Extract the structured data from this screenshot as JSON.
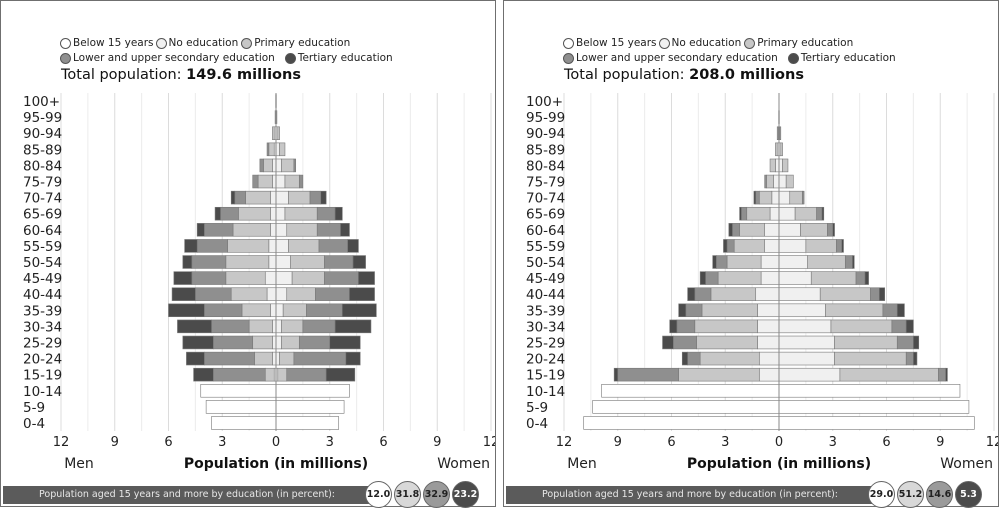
{
  "legend": {
    "items": [
      {
        "label": "Below 15 years",
        "color": "#ffffff"
      },
      {
        "label": "No education",
        "color": "#f0f0f0"
      },
      {
        "label": "Primary education",
        "color": "#c7c7c7"
      },
      {
        "label": "Lower and upper secondary education",
        "color": "#8f8f8f"
      },
      {
        "label": "Tertiary education",
        "color": "#4b4b4b"
      }
    ]
  },
  "footer": {
    "label": "Population aged 15 years and more by education (in percent):"
  },
  "panels": [
    {
      "total_label": "Total population:",
      "total_value": "149.6 millions",
      "bubbles": [
        {
          "value": "12.0",
          "color": "#ffffff",
          "text": "#222222"
        },
        {
          "value": "31.8",
          "color": "#d8d8d8",
          "text": "#222222"
        },
        {
          "value": "32.9",
          "color": "#9a9a9a",
          "text": "#222222"
        },
        {
          "value": "23.2",
          "color": "#4b4b4b",
          "text": "#ffffff"
        }
      ]
    },
    {
      "total_label": "Total population:",
      "total_value": "208.0 millions",
      "bubbles": [
        {
          "value": "29.0",
          "color": "#ffffff",
          "text": "#222222"
        },
        {
          "value": "51.2",
          "color": "#d8d8d8",
          "text": "#222222"
        },
        {
          "value": "14.6",
          "color": "#9a9a9a",
          "text": "#222222"
        },
        {
          "value": "5.3",
          "color": "#4b4b4b",
          "text": "#ffffff"
        }
      ]
    }
  ],
  "chart_data": [
    {
      "type": "bar",
      "orientation": "horizontal",
      "subtype": "population-pyramid",
      "title": "Total population: 149.6 millions",
      "xlabel": "Population (in millions)",
      "left_label": "Men",
      "right_label": "Women",
      "xlim": [
        -12,
        12
      ],
      "x_ticks": [
        "12",
        "9",
        "6",
        "3",
        "0",
        "3",
        "6",
        "9",
        "12"
      ],
      "categories": [
        "0-4",
        "5-9",
        "10-14",
        "15-19",
        "20-24",
        "25-29",
        "30-34",
        "35-39",
        "40-44",
        "45-49",
        "50-54",
        "55-59",
        "60-64",
        "65-69",
        "70-74",
        "75-79",
        "80-84",
        "85-89",
        "90-94",
        "95-99",
        "100+"
      ],
      "series_order": [
        "Below 15 years",
        "No education",
        "Primary education",
        "Lower and upper secondary education",
        "Tertiary education"
      ],
      "men": [
        [
          3.6,
          0,
          0,
          0,
          0
        ],
        [
          3.9,
          0,
          0,
          0,
          0
        ],
        [
          4.2,
          0,
          0,
          0,
          0
        ],
        [
          0,
          0.1,
          0.5,
          2.9,
          1.1
        ],
        [
          0,
          0.2,
          1.0,
          2.8,
          1.0
        ],
        [
          0,
          0.2,
          1.1,
          2.2,
          1.7
        ],
        [
          0,
          0.2,
          1.3,
          2.1,
          1.9
        ],
        [
          0,
          0.3,
          1.6,
          2.1,
          2.0
        ],
        [
          0,
          0.5,
          2.0,
          2.0,
          1.3
        ],
        [
          0,
          0.6,
          2.2,
          1.9,
          1.0
        ],
        [
          0,
          0.4,
          2.4,
          1.9,
          0.5
        ],
        [
          0,
          0.4,
          2.3,
          1.7,
          0.7
        ],
        [
          0,
          0.3,
          2.1,
          1.6,
          0.4
        ],
        [
          0,
          0.3,
          1.8,
          1.0,
          0.3
        ],
        [
          0,
          0.3,
          1.4,
          0.6,
          0.2
        ],
        [
          0,
          0.2,
          0.8,
          0.3,
          0.0
        ],
        [
          0,
          0.2,
          0.5,
          0.2,
          0.0
        ],
        [
          0,
          0.1,
          0.3,
          0.1,
          0.0
        ],
        [
          0,
          0.1,
          0.1,
          0.0,
          0.0
        ],
        [
          0,
          0.0,
          0.05,
          0.0,
          0.0
        ],
        [
          0,
          0.0,
          0.02,
          0.0,
          0.0
        ]
      ],
      "women": [
        [
          3.5,
          0,
          0,
          0,
          0
        ],
        [
          3.8,
          0,
          0,
          0,
          0
        ],
        [
          4.1,
          0,
          0,
          0,
          0
        ],
        [
          0,
          0.1,
          0.5,
          2.2,
          1.6
        ],
        [
          0,
          0.2,
          0.8,
          2.9,
          0.8
        ],
        [
          0,
          0.3,
          1.0,
          1.7,
          1.7
        ],
        [
          0,
          0.3,
          1.2,
          1.8,
          2.0
        ],
        [
          0,
          0.4,
          1.3,
          2.0,
          1.9
        ],
        [
          0,
          0.6,
          1.6,
          1.9,
          1.4
        ],
        [
          0,
          0.9,
          1.8,
          1.9,
          0.9
        ],
        [
          0,
          0.8,
          1.9,
          1.6,
          0.7
        ],
        [
          0,
          0.7,
          1.7,
          1.6,
          0.6
        ],
        [
          0,
          0.6,
          1.7,
          1.3,
          0.5
        ],
        [
          0,
          0.5,
          1.8,
          1.0,
          0.4
        ],
        [
          0,
          0.7,
          1.2,
          0.6,
          0.3
        ],
        [
          0,
          0.5,
          0.8,
          0.2,
          0.0
        ],
        [
          0,
          0.3,
          0.7,
          0.1,
          0.0
        ],
        [
          0,
          0.2,
          0.3,
          0.0,
          0.0
        ],
        [
          0,
          0.1,
          0.1,
          0.0,
          0.0
        ],
        [
          0,
          0.0,
          0.05,
          0.0,
          0.0
        ],
        [
          0,
          0.0,
          0.02,
          0.0,
          0.0
        ]
      ]
    },
    {
      "type": "bar",
      "orientation": "horizontal",
      "subtype": "population-pyramid",
      "title": "Total population: 208.0 millions",
      "xlabel": "Population (in millions)",
      "left_label": "Men",
      "right_label": "Women",
      "xlim": [
        -12,
        12
      ],
      "x_ticks": [
        "12",
        "9",
        "6",
        "3",
        "0",
        "3",
        "6",
        "9",
        "12"
      ],
      "categories": [
        "0-4",
        "5-9",
        "10-14",
        "15-19",
        "20-24",
        "25-29",
        "30-34",
        "35-39",
        "40-44",
        "45-49",
        "50-54",
        "55-59",
        "60-64",
        "65-69",
        "70-74",
        "75-79",
        "80-84",
        "85-89",
        "90-94",
        "95-99",
        "100+"
      ],
      "series_order": [
        "Below 15 years",
        "No education",
        "Primary education",
        "Lower and upper secondary education",
        "Tertiary education"
      ],
      "men": [
        [
          10.9,
          0,
          0,
          0,
          0
        ],
        [
          10.4,
          0,
          0,
          0,
          0
        ],
        [
          9.9,
          0,
          0,
          0,
          0
        ],
        [
          0,
          1.1,
          4.5,
          3.4,
          0.2
        ],
        [
          0,
          1.1,
          3.3,
          0.7,
          0.3
        ],
        [
          0,
          1.2,
          3.4,
          1.3,
          0.6
        ],
        [
          0,
          1.2,
          3.5,
          1.0,
          0.4
        ],
        [
          0,
          1.2,
          3.1,
          0.9,
          0.4
        ],
        [
          0,
          1.3,
          2.5,
          0.9,
          0.4
        ],
        [
          0,
          1.0,
          2.4,
          0.7,
          0.3
        ],
        [
          0,
          1.0,
          1.9,
          0.6,
          0.2
        ],
        [
          0,
          0.8,
          1.7,
          0.4,
          0.2
        ],
        [
          0,
          0.8,
          1.4,
          0.4,
          0.2
        ],
        [
          0,
          0.5,
          1.3,
          0.3,
          0.1
        ],
        [
          0,
          0.4,
          0.7,
          0.2,
          0.1
        ],
        [
          0,
          0.3,
          0.4,
          0.1,
          0.0
        ],
        [
          0,
          0.2,
          0.3,
          0.0,
          0.0
        ],
        [
          0,
          0.1,
          0.1,
          0.0,
          0.0
        ],
        [
          0,
          0.05,
          0.05,
          0.0,
          0.0
        ],
        [
          0,
          0.0,
          0.02,
          0.0,
          0.0
        ],
        [
          0,
          0.0,
          0.01,
          0.0,
          0.0
        ]
      ],
      "women": [
        [
          10.9,
          0,
          0,
          0,
          0
        ],
        [
          10.6,
          0,
          0,
          0,
          0
        ],
        [
          10.1,
          0,
          0,
          0,
          0
        ],
        [
          0,
          3.4,
          5.5,
          0.4,
          0.1
        ],
        [
          0,
          3.1,
          4.0,
          0.4,
          0.2
        ],
        [
          0,
          3.1,
          3.5,
          0.9,
          0.3
        ],
        [
          0,
          2.9,
          3.4,
          0.8,
          0.4
        ],
        [
          0,
          2.6,
          3.2,
          0.8,
          0.4
        ],
        [
          0,
          2.3,
          2.8,
          0.5,
          0.3
        ],
        [
          0,
          1.8,
          2.5,
          0.5,
          0.2
        ],
        [
          0,
          1.6,
          2.1,
          0.4,
          0.1
        ],
        [
          0,
          1.5,
          1.7,
          0.3,
          0.1
        ],
        [
          0,
          1.2,
          1.5,
          0.3,
          0.1
        ],
        [
          0,
          0.9,
          1.2,
          0.3,
          0.1
        ],
        [
          0,
          0.6,
          0.7,
          0.1,
          0.0
        ],
        [
          0,
          0.4,
          0.4,
          0.0,
          0.0
        ],
        [
          0,
          0.2,
          0.3,
          0.0,
          0.0
        ],
        [
          0,
          0.1,
          0.1,
          0.0,
          0.0
        ],
        [
          0,
          0.05,
          0.05,
          0.0,
          0.0
        ],
        [
          0,
          0.0,
          0.02,
          0.0,
          0.0
        ],
        [
          0,
          0.0,
          0.01,
          0.0,
          0.0
        ]
      ]
    }
  ]
}
